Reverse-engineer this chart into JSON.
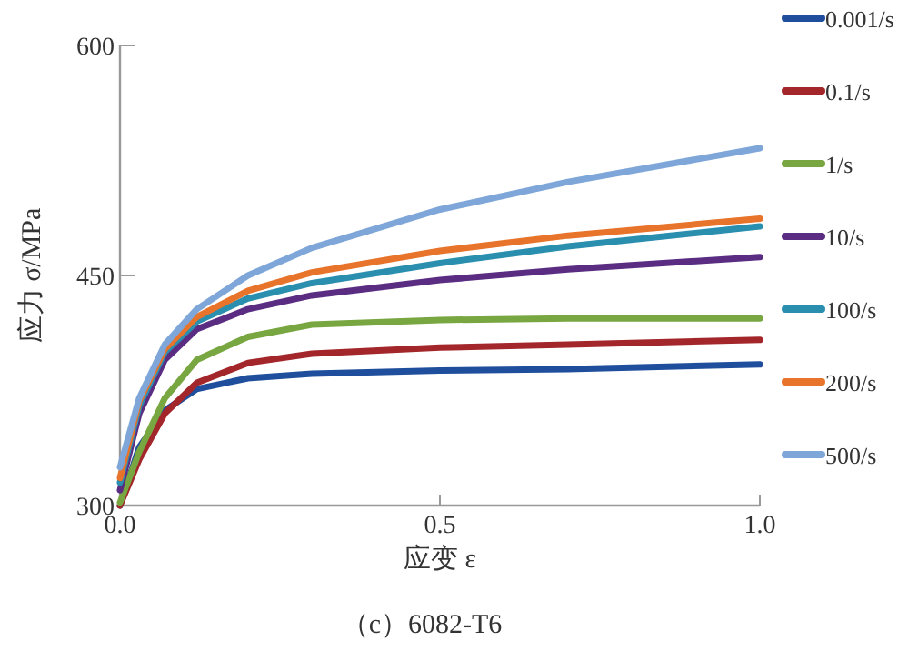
{
  "chart_data": {
    "type": "line",
    "title": "（c）6082-T6",
    "xlabel": "应变 ε",
    "ylabel": "应力 σ/MPa",
    "x": [
      0,
      0.03,
      0.07,
      0.12,
      0.2,
      0.3,
      0.5,
      0.7,
      1.0
    ],
    "series": [
      {
        "name": "0.001/s",
        "color": "#1f4e9c",
        "values": [
          300,
          338,
          362,
          376,
          383,
          386,
          388,
          389,
          392
        ]
      },
      {
        "name": "0.1/s",
        "color": "#a3262a",
        "values": [
          300,
          330,
          360,
          380,
          393,
          399,
          403,
          405,
          408
        ]
      },
      {
        "name": "1/s",
        "color": "#78a640",
        "values": [
          302,
          335,
          370,
          395,
          410,
          418,
          421,
          422,
          422
        ]
      },
      {
        "name": "10/s",
        "color": "#5a2d82",
        "values": [
          310,
          360,
          395,
          415,
          428,
          437,
          447,
          454,
          462
        ]
      },
      {
        "name": "100/s",
        "color": "#2a8fae",
        "values": [
          315,
          365,
          400,
          420,
          435,
          445,
          458,
          469,
          482
        ]
      },
      {
        "name": "200/s",
        "color": "#e8732a",
        "values": [
          318,
          368,
          402,
          423,
          440,
          452,
          466,
          476,
          487
        ]
      },
      {
        "name": "500/s",
        "color": "#7ea6d8",
        "values": [
          325,
          370,
          405,
          428,
          450,
          468,
          493,
          511,
          533
        ]
      }
    ],
    "xlim": [
      0,
      1.0
    ],
    "ylim": [
      300,
      600
    ],
    "xticks": [
      {
        "value": 0,
        "label": "0.0"
      },
      0.5,
      {
        "value": 1,
        "label": "1.0"
      }
    ],
    "yticks": [
      300,
      450,
      600
    ],
    "legend": "right"
  }
}
